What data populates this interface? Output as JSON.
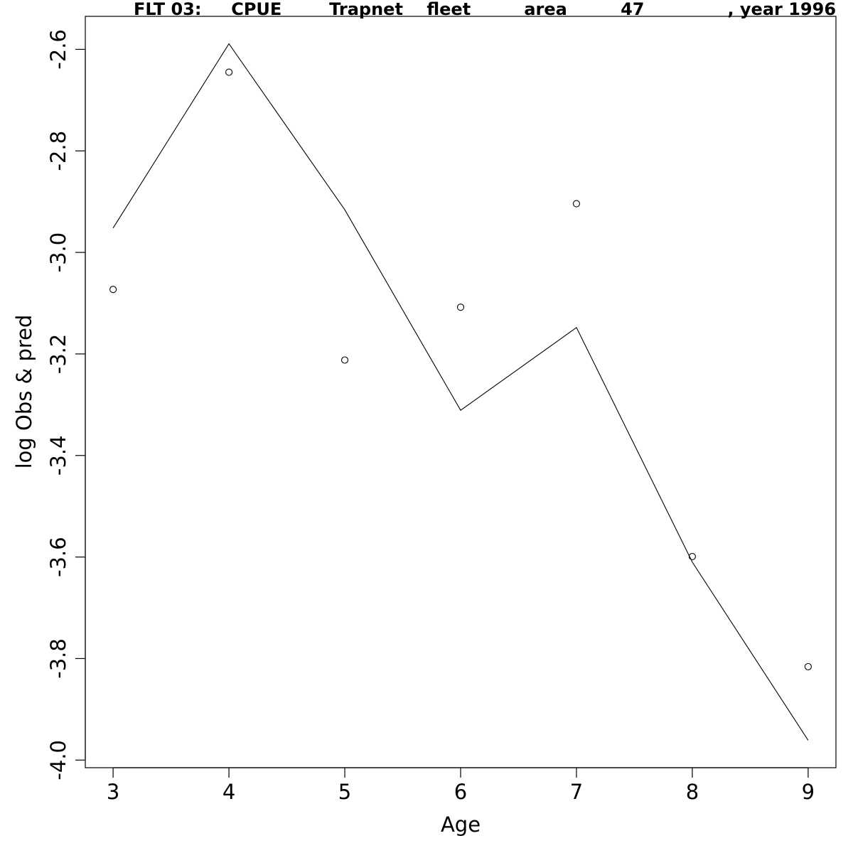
{
  "chart_data": {
    "type": "line",
    "title": "FLT 03:     CPUE        Trapnet    fleet         area         47              , year 1996",
    "xlabel": "Age",
    "ylabel": "log Obs & pred",
    "xlim": [
      2.76,
      9.24
    ],
    "ylim": [
      -4.015,
      -2.535
    ],
    "x_ticks": [
      3,
      4,
      5,
      6,
      7,
      8,
      9
    ],
    "y_ticks": [
      -4.0,
      -3.8,
      -3.6,
      -3.4,
      -3.2,
      -3.0,
      -2.8,
      -2.6
    ],
    "y_tick_labels": [
      "-4.0",
      "-3.8",
      "-3.6",
      "-3.4",
      "-3.2",
      "-3.0",
      "-2.8",
      "-2.6"
    ],
    "x": [
      3,
      4,
      5,
      6,
      7,
      8,
      9
    ],
    "series": [
      {
        "style": "points",
        "values": [
          -3.073,
          -2.645,
          -3.212,
          -3.108,
          -2.904,
          -3.599,
          -3.816
        ]
      },
      {
        "style": "line",
        "values": [
          -2.952,
          -2.589,
          -2.916,
          -3.311,
          -3.148,
          -3.61,
          -3.961
        ]
      }
    ],
    "grid": false,
    "colors": {
      "ink": "#000000",
      "background": "#ffffff"
    }
  }
}
